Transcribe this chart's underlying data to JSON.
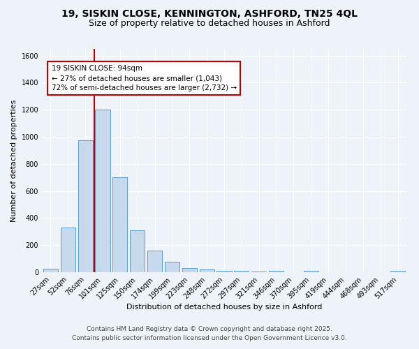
{
  "title_line1": "19, SISKIN CLOSE, KENNINGTON, ASHFORD, TN25 4QL",
  "title_line2": "Size of property relative to detached houses in Ashford",
  "xlabel": "Distribution of detached houses by size in Ashford",
  "ylabel": "Number of detached properties",
  "bar_labels": [
    "27sqm",
    "52sqm",
    "76sqm",
    "101sqm",
    "125sqm",
    "150sqm",
    "174sqm",
    "199sqm",
    "223sqm",
    "248sqm",
    "272sqm",
    "297sqm",
    "321sqm",
    "346sqm",
    "370sqm",
    "395sqm",
    "419sqm",
    "444sqm",
    "468sqm",
    "493sqm",
    "517sqm"
  ],
  "bar_values": [
    25,
    330,
    975,
    1200,
    700,
    310,
    160,
    75,
    30,
    20,
    10,
    10,
    5,
    10,
    0,
    10,
    0,
    0,
    0,
    0,
    10
  ],
  "bar_color": "#c7d9ed",
  "bar_edgecolor": "#5b9bd5",
  "background_color": "#eef2f9",
  "grid_color": "#ffffff",
  "vline_color": "#c00000",
  "annotation_text": "19 SISKIN CLOSE: 94sqm\n← 27% of detached houses are smaller (1,043)\n72% of semi-detached houses are larger (2,732) →",
  "annotation_box_edgecolor": "#c00000",
  "ylim": [
    0,
    1650
  ],
  "yticks": [
    0,
    200,
    400,
    600,
    800,
    1000,
    1200,
    1400,
    1600
  ],
  "footnote1": "Contains HM Land Registry data © Crown copyright and database right 2025.",
  "footnote2": "Contains public sector information licensed under the Open Government Licence v3.0.",
  "title_fontsize": 10,
  "subtitle_fontsize": 9,
  "axis_label_fontsize": 8,
  "tick_fontsize": 7,
  "annotation_fontsize": 7.5,
  "footnote_fontsize": 6.5
}
